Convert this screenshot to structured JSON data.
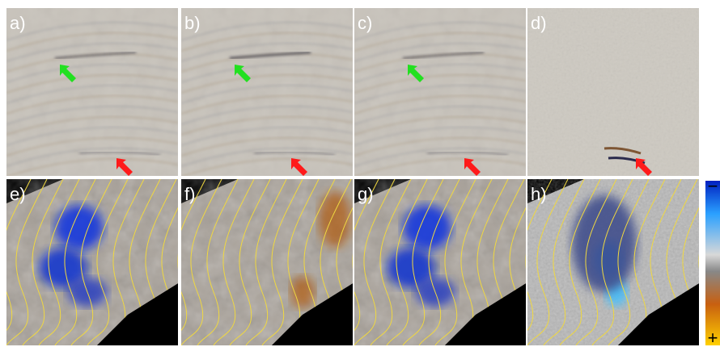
{
  "panels": [
    {
      "label": "a)"
    },
    {
      "label": "b)"
    },
    {
      "label": "c)"
    },
    {
      "label": "d)"
    },
    {
      "label": "e)"
    },
    {
      "label": "f)"
    },
    {
      "label": "g)"
    },
    {
      "label": "h)"
    }
  ],
  "colorbar": {
    "top": "−",
    "bottom": "+"
  }
}
